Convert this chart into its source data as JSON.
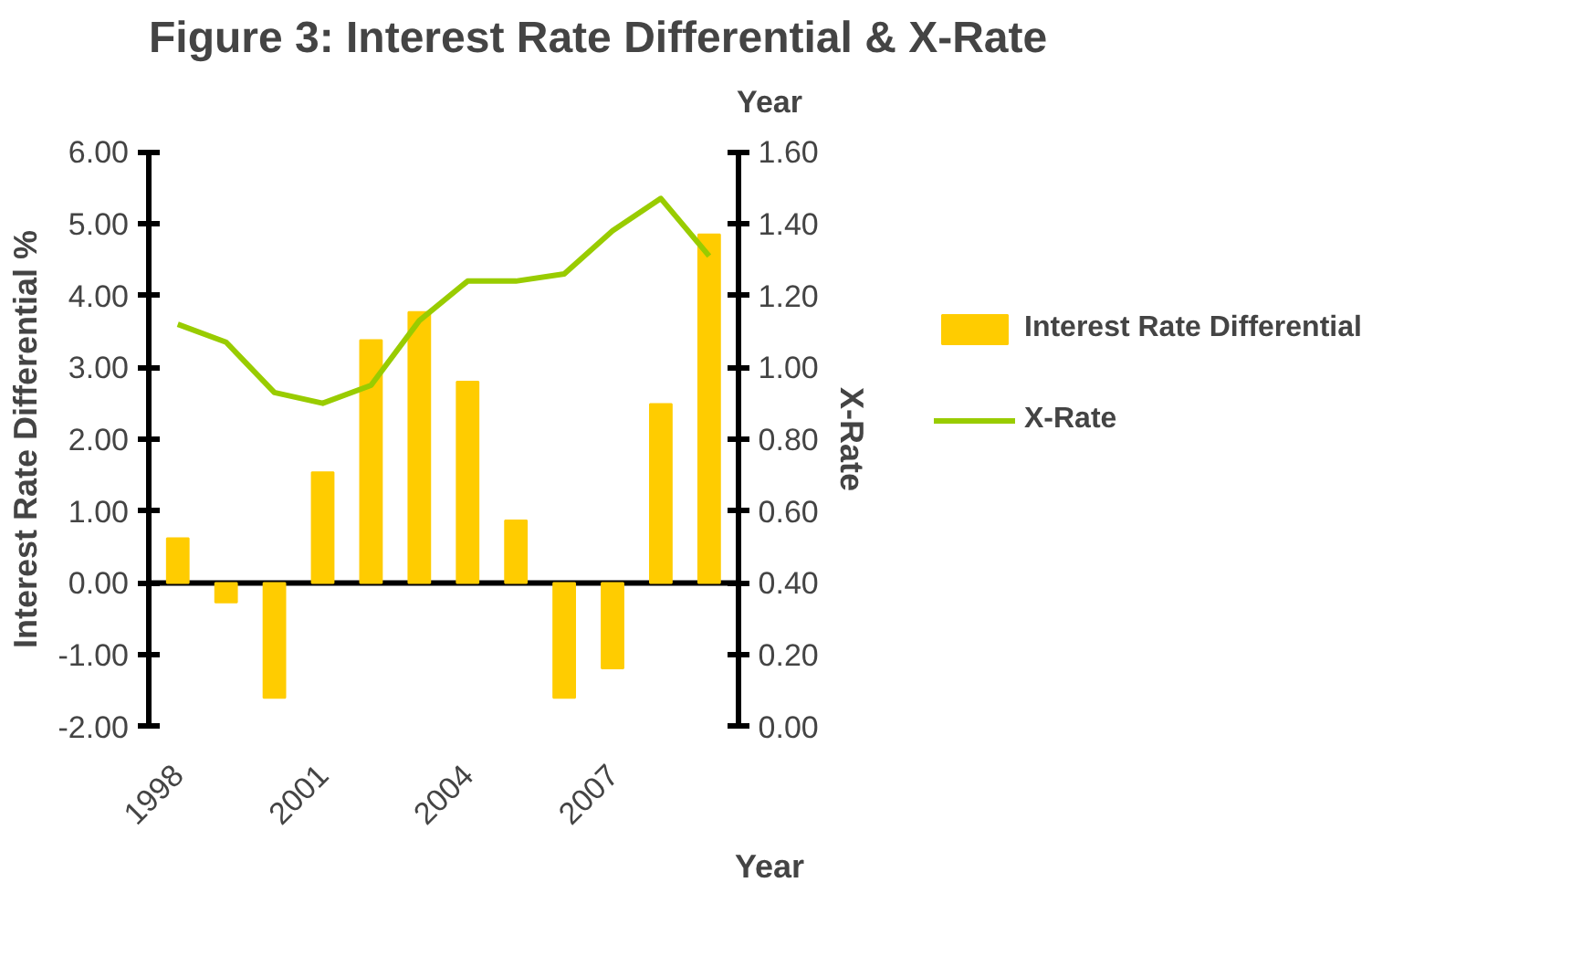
{
  "chart_data": {
    "type": "bar",
    "title": "Figure 3: Interest Rate Differential & X-Rate",
    "subtitle": "Year",
    "xlabel": "Year",
    "ylabel": "Interest Rate Differential %",
    "y2label": "X-Rate",
    "categories": [
      "1998",
      null,
      null,
      "2001",
      null,
      null,
      "2004",
      null,
      null,
      "2007",
      null,
      null
    ],
    "series": [
      {
        "name": "Interest Rate Differential",
        "color": "#ffcc00",
        "values": [
          0.62,
          -0.27,
          -1.6,
          1.54,
          3.38,
          3.77,
          2.8,
          0.87,
          -1.6,
          -1.19,
          2.49,
          4.85
        ]
      },
      {
        "name": "X-Rate",
        "type": "line",
        "axis": "y2",
        "color": "#99cc00",
        "values": [
          1.12,
          1.07,
          0.93,
          0.9,
          0.95,
          1.13,
          1.24,
          1.24,
          1.26,
          1.38,
          1.47,
          1.31
        ]
      }
    ],
    "ylim": [
      -2,
      6
    ],
    "yticks": [
      {
        "value": -2,
        "label": "-2.00"
      },
      {
        "value": -1,
        "label": "-1.00"
      },
      {
        "value": 0,
        "label": "0.00"
      },
      {
        "value": 1,
        "label": "1.00"
      },
      {
        "value": 2,
        "label": "2.00"
      },
      {
        "value": 3,
        "label": "3.00"
      },
      {
        "value": 4,
        "label": "4.00"
      },
      {
        "value": 5,
        "label": "5.00"
      },
      {
        "value": 6,
        "label": "6.00"
      }
    ],
    "y2lim": [
      0,
      1.6
    ],
    "y2ticks": [
      {
        "value": 0,
        "label": "0.00"
      },
      {
        "value": 0.2,
        "label": "0.20"
      },
      {
        "value": 0.4,
        "label": "0.40"
      },
      {
        "value": 0.6,
        "label": "0.60"
      },
      {
        "value": 0.8,
        "label": "0.80"
      },
      {
        "value": 1.0,
        "label": "1.00"
      },
      {
        "value": 1.2,
        "label": "1.20"
      },
      {
        "value": 1.4,
        "label": "1.40"
      },
      {
        "value": 1.6,
        "label": "1.60"
      }
    ],
    "legend": "right"
  }
}
